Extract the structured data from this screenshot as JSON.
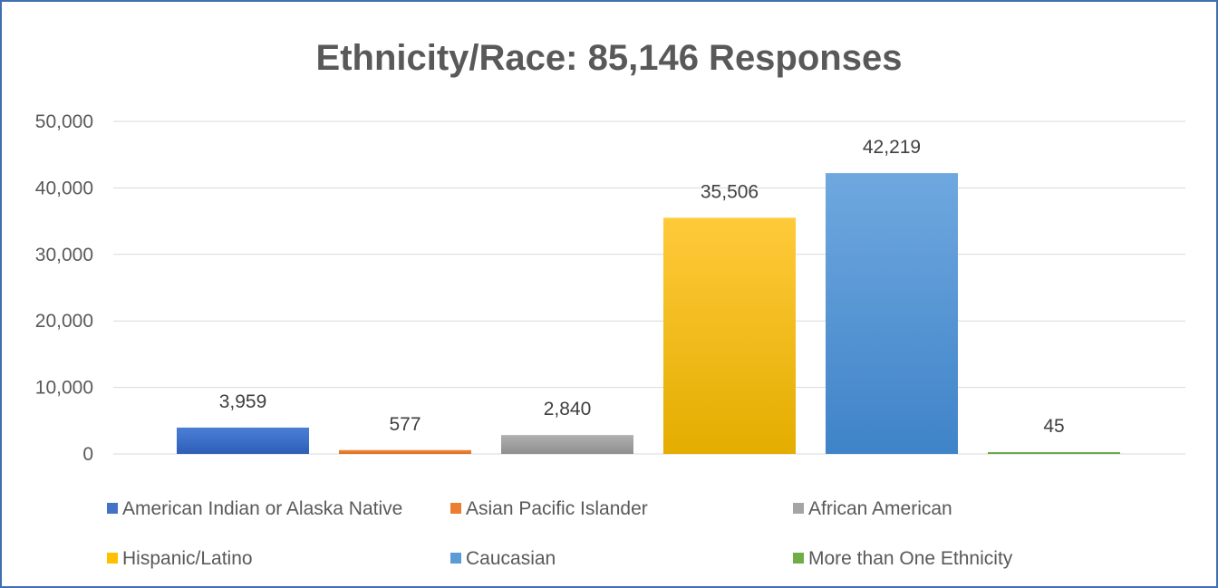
{
  "chart_data": {
    "type": "bar",
    "title": "Ethnicity/Race: 85,146 Responses",
    "categories": [
      "American Indian or Alaska Native",
      "Asian Pacific Islander",
      "African American",
      "Hispanic/Latino",
      "Caucasian",
      "More than One Ethnicity"
    ],
    "values": [
      3959,
      577,
      2840,
      35506,
      42219,
      45
    ],
    "data_labels": [
      "3,959",
      "577",
      "2,840",
      "35,506",
      "42,219",
      "45"
    ],
    "colors": [
      "#4472c4",
      "#ed7d31",
      "#a5a5a5",
      "#ffc000",
      "#5b9bd5",
      "#70ad47"
    ],
    "ylim": [
      0,
      50000
    ],
    "yticks": [
      0,
      10000,
      20000,
      30000,
      40000,
      50000
    ],
    "ytick_labels": [
      "0",
      "10,000",
      "20,000",
      "30,000",
      "40,000",
      "50,000"
    ],
    "grid": true,
    "legend_position": "bottom"
  }
}
